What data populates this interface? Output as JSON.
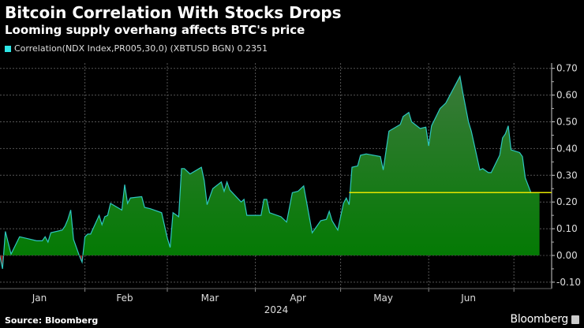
{
  "header": {
    "title": "Bitcoin Correlation With Stocks Drops",
    "subtitle": "Looming supply overhang affects BTC's price"
  },
  "footer": {
    "source": "Source: Bloomberg",
    "logo": "Bloomberg"
  },
  "colors": {
    "line": "#2ec7c0",
    "fill_top": "#3a7a3a",
    "fill_bottom": "#007a00",
    "negative_fill": "#8b1a1a",
    "last_value_line": "#e6e600",
    "legend_swatch": "#2ee6e6"
  },
  "chart_data": {
    "type": "area",
    "title": "Bitcoin Correlation With Stocks Drops",
    "subtitle": "Looming supply overhang affects BTC's price",
    "legend": {
      "position": "top-left",
      "entries": [
        "Correlation(NDX Index,PR005,30,0) (XBTUSD BGN) 0.2351"
      ]
    },
    "series": [
      {
        "name": "Correlation(NDX Index,PR005,30,0) (XBTUSD BGN)",
        "last_value": 0.2351,
        "points": [
          [
            "2024-01-02",
            0.0
          ],
          [
            "2024-01-03",
            -0.05
          ],
          [
            "2024-01-04",
            0.09
          ],
          [
            "2024-01-06",
            0.005
          ],
          [
            "2024-01-09",
            0.07
          ],
          [
            "2024-01-11",
            0.065
          ],
          [
            "2024-01-15",
            0.055
          ],
          [
            "2024-01-17",
            0.055
          ],
          [
            "2024-01-18",
            0.07
          ],
          [
            "2024-01-19",
            0.05
          ],
          [
            "2024-01-20",
            0.085
          ],
          [
            "2024-01-24",
            0.095
          ],
          [
            "2024-01-25",
            0.11
          ],
          [
            "2024-01-26",
            0.135
          ],
          [
            "2024-01-27",
            0.17
          ],
          [
            "2024-01-28",
            0.06
          ],
          [
            "2024-01-30",
            0.0
          ],
          [
            "2024-01-31",
            -0.025
          ],
          [
            "2024-02-01",
            0.07
          ],
          [
            "2024-02-02",
            0.08
          ],
          [
            "2024-02-03",
            0.08
          ],
          [
            "2024-02-06",
            0.15
          ],
          [
            "2024-02-07",
            0.115
          ],
          [
            "2024-02-08",
            0.145
          ],
          [
            "2024-02-09",
            0.15
          ],
          [
            "2024-02-10",
            0.195
          ],
          [
            "2024-02-14",
            0.17
          ],
          [
            "2024-02-15",
            0.265
          ],
          [
            "2024-02-16",
            0.195
          ],
          [
            "2024-02-17",
            0.215
          ],
          [
            "2024-02-21",
            0.22
          ],
          [
            "2024-02-22",
            0.18
          ],
          [
            "2024-02-24",
            0.175
          ],
          [
            "2024-02-28",
            0.16
          ],
          [
            "2024-03-01",
            0.065
          ],
          [
            "2024-03-02",
            0.03
          ],
          [
            "2024-03-03",
            0.16
          ],
          [
            "2024-03-05",
            0.145
          ],
          [
            "2024-03-06",
            0.325
          ],
          [
            "2024-03-07",
            0.325
          ],
          [
            "2024-03-09",
            0.305
          ],
          [
            "2024-03-13",
            0.33
          ],
          [
            "2024-03-14",
            0.28
          ],
          [
            "2024-03-15",
            0.19
          ],
          [
            "2024-03-17",
            0.25
          ],
          [
            "2024-03-20",
            0.275
          ],
          [
            "2024-03-21",
            0.24
          ],
          [
            "2024-03-22",
            0.275
          ],
          [
            "2024-03-23",
            0.245
          ],
          [
            "2024-03-27",
            0.2
          ],
          [
            "2024-03-28",
            0.21
          ],
          [
            "2024-03-29",
            0.15
          ],
          [
            "2024-04-03",
            0.15
          ],
          [
            "2024-04-04",
            0.21
          ],
          [
            "2024-04-05",
            0.21
          ],
          [
            "2024-04-06",
            0.16
          ],
          [
            "2024-04-10",
            0.145
          ],
          [
            "2024-04-12",
            0.125
          ],
          [
            "2024-04-14",
            0.235
          ],
          [
            "2024-04-16",
            0.24
          ],
          [
            "2024-04-18",
            0.26
          ],
          [
            "2024-04-21",
            0.085
          ],
          [
            "2024-04-24",
            0.13
          ],
          [
            "2024-04-26",
            0.135
          ],
          [
            "2024-04-27",
            0.165
          ],
          [
            "2024-04-28",
            0.13
          ],
          [
            "2024-04-30",
            0.095
          ],
          [
            "2024-05-02",
            0.195
          ],
          [
            "2024-05-03",
            0.215
          ],
          [
            "2024-05-04",
            0.19
          ],
          [
            "2024-05-05",
            0.33
          ],
          [
            "2024-05-07",
            0.335
          ],
          [
            "2024-05-08",
            0.375
          ],
          [
            "2024-05-10",
            0.38
          ],
          [
            "2024-05-15",
            0.37
          ],
          [
            "2024-05-16",
            0.32
          ],
          [
            "2024-05-18",
            0.465
          ],
          [
            "2024-05-22",
            0.49
          ],
          [
            "2024-05-23",
            0.52
          ],
          [
            "2024-05-25",
            0.535
          ],
          [
            "2024-05-26",
            0.5
          ],
          [
            "2024-05-29",
            0.475
          ],
          [
            "2024-05-31",
            0.48
          ],
          [
            "2024-06-01",
            0.41
          ],
          [
            "2024-06-02",
            0.485
          ],
          [
            "2024-06-05",
            0.55
          ],
          [
            "2024-06-07",
            0.57
          ],
          [
            "2024-06-12",
            0.67
          ],
          [
            "2024-06-13",
            0.61
          ],
          [
            "2024-06-15",
            0.5
          ],
          [
            "2024-06-16",
            0.465
          ],
          [
            "2024-06-19",
            0.32
          ],
          [
            "2024-06-20",
            0.325
          ],
          [
            "2024-06-22",
            0.31
          ],
          [
            "2024-06-23",
            0.31
          ],
          [
            "2024-06-26",
            0.375
          ],
          [
            "2024-06-27",
            0.44
          ],
          [
            "2024-06-28",
            0.455
          ],
          [
            "2024-06-29",
            0.485
          ],
          [
            "2024-06-30",
            0.395
          ],
          [
            "2024-07-03",
            0.385
          ],
          [
            "2024-07-04",
            0.37
          ],
          [
            "2024-07-05",
            0.29
          ],
          [
            "2024-07-07",
            0.2351
          ],
          [
            "2024-07-10",
            0.2351
          ]
        ]
      }
    ],
    "x_ticks": [
      "Jan",
      "Feb",
      "Mar",
      "Apr",
      "May",
      "Jun"
    ],
    "x_year_label": "2024",
    "y_ticks": [
      "0.70",
      "0.60",
      "0.50",
      "0.40",
      "0.30",
      "0.20",
      "0.10",
      "0.00",
      "-0.10"
    ],
    "ylim": [
      -0.12,
      0.72
    ],
    "y_axis_position": "right",
    "grid": true,
    "xlabel": "",
    "ylabel": ""
  }
}
